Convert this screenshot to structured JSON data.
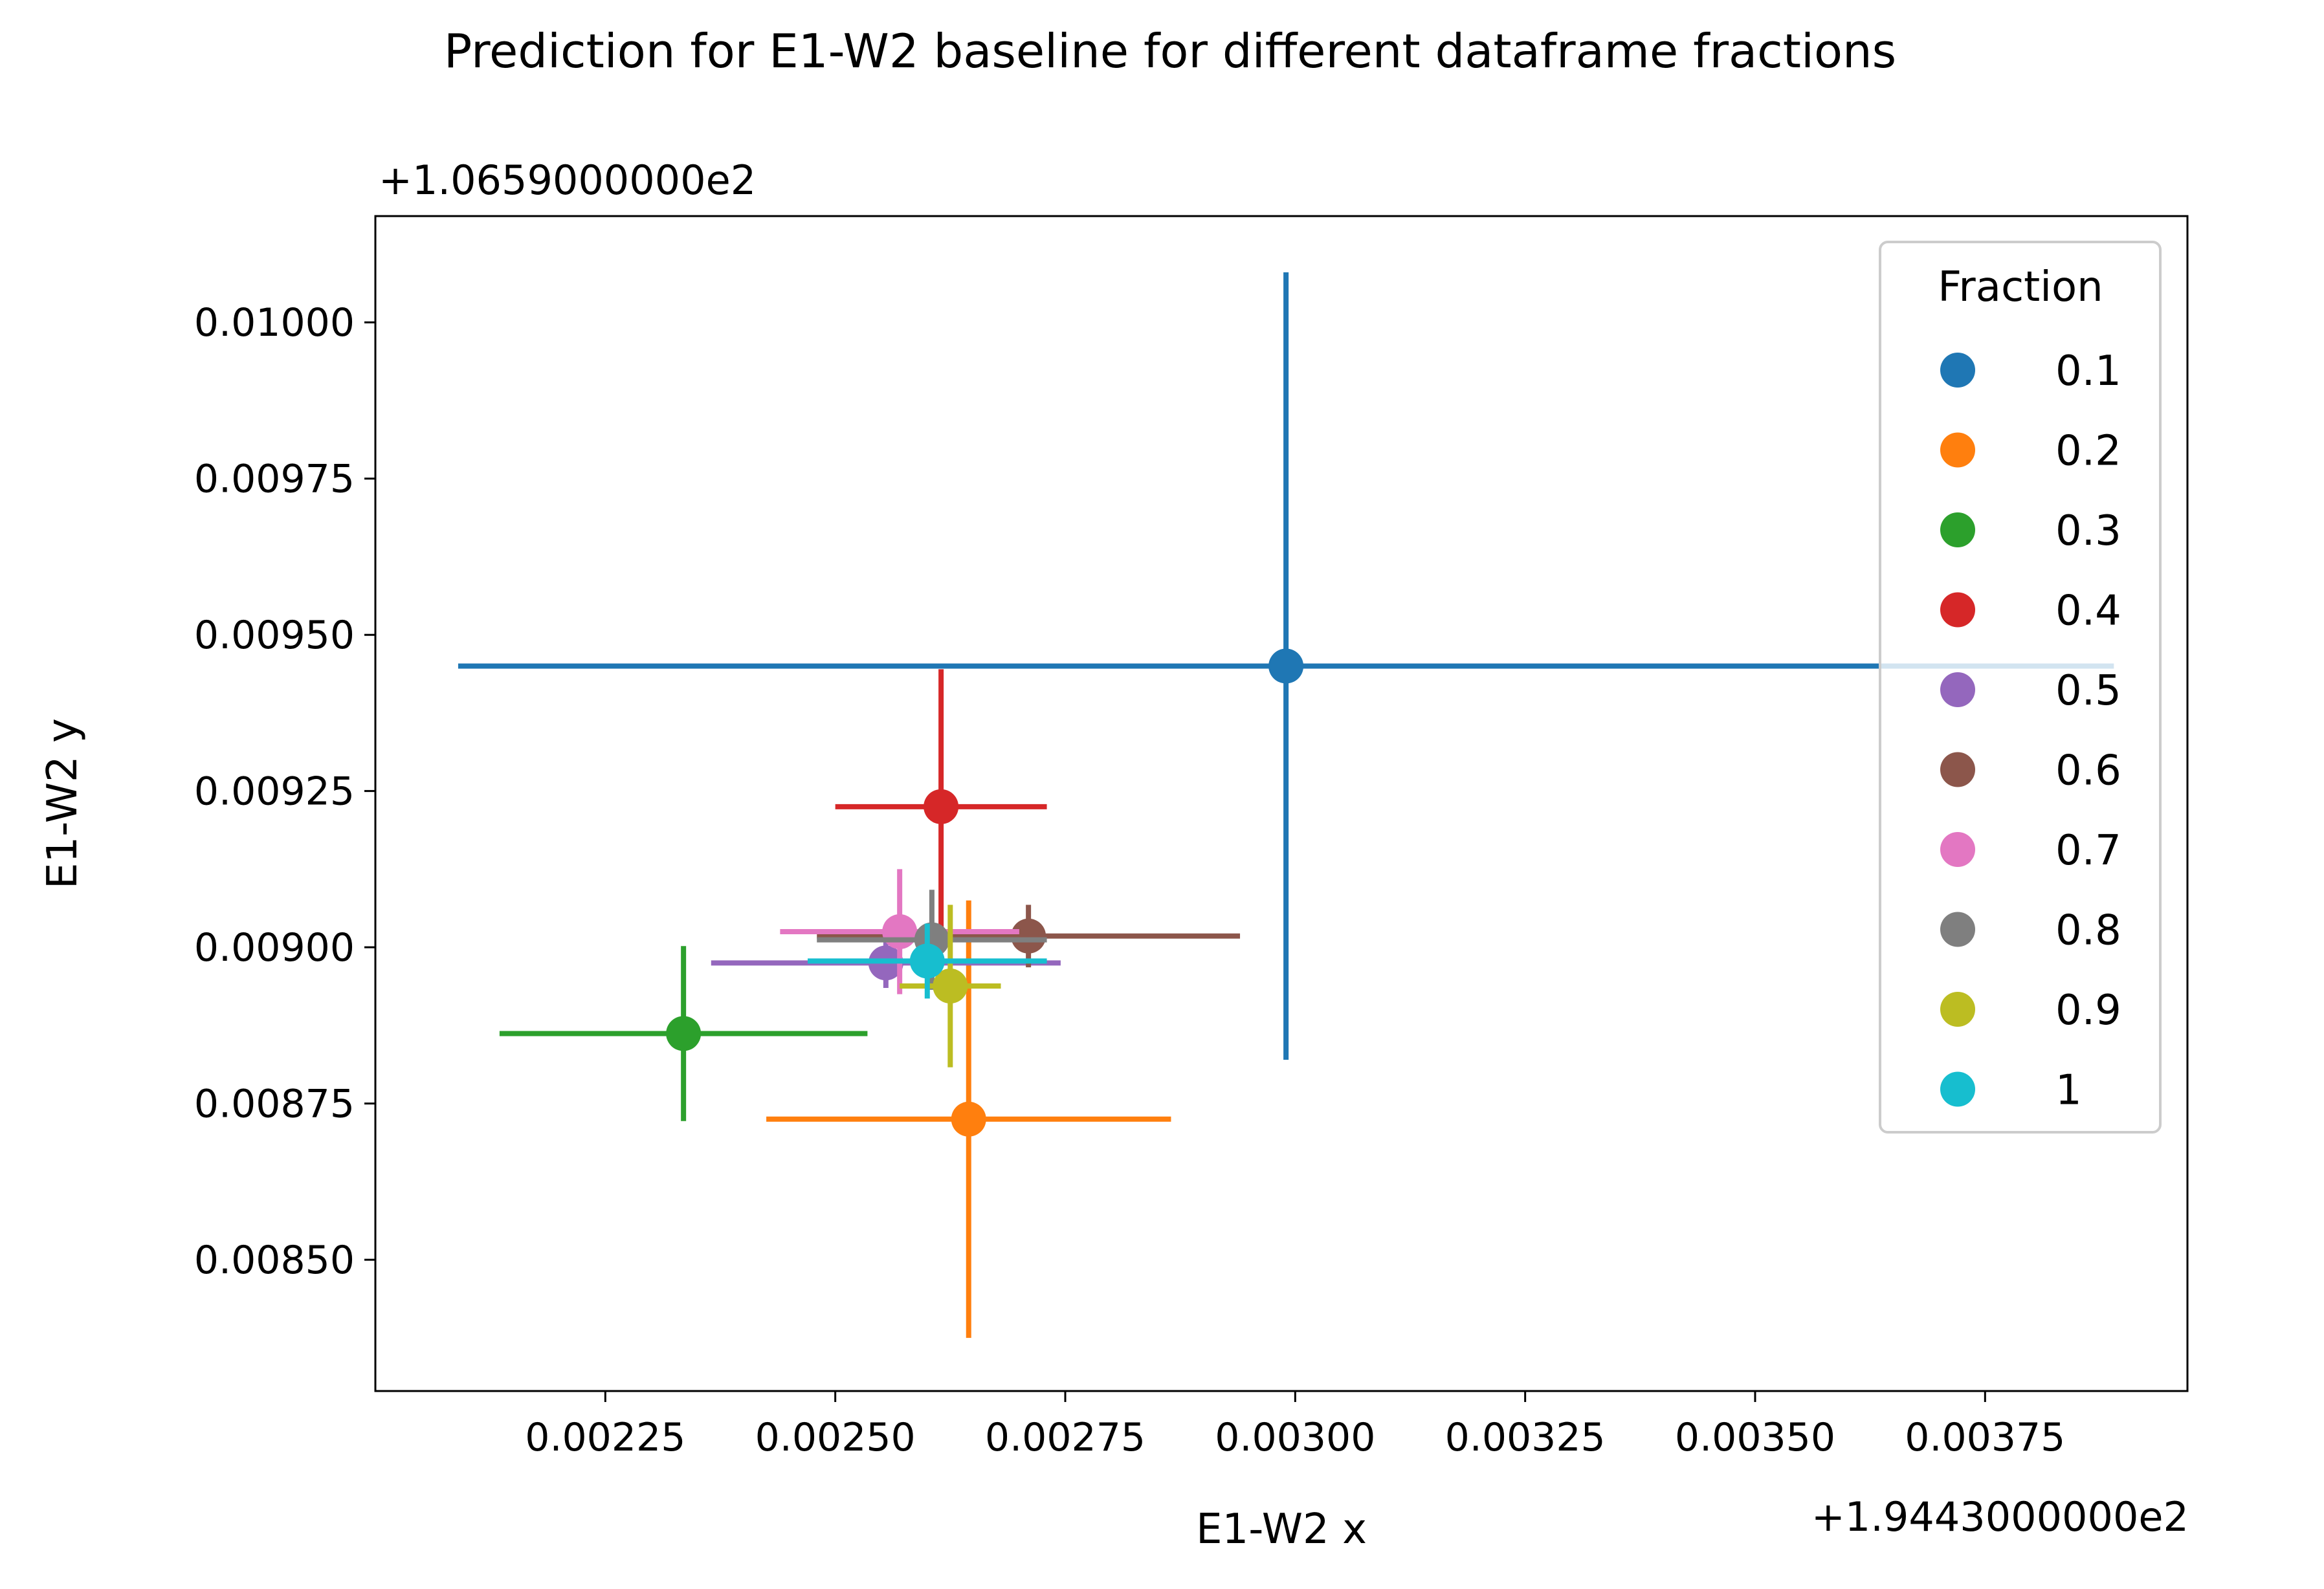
{
  "chart_data": {
    "type": "scatter",
    "title": "Prediction for E1-W2 baseline for different dataframe fractions",
    "xlabel": "E1-W2 x",
    "ylabel": "E1-W2 y",
    "x_offset_label": "+1.9443000000e2",
    "y_offset_label": "+1.0659000000e2",
    "x_offset": 194.43,
    "y_offset": 106.59,
    "xlim": [
      0.002,
      0.00397
    ],
    "ylim": [
      0.00829,
      0.01017
    ],
    "x_ticks": [
      0.00225,
      0.0025,
      0.00275,
      0.003,
      0.00325,
      0.0035,
      0.00375
    ],
    "x_tick_labels": [
      "0.00225",
      "0.00250",
      "0.00275",
      "0.00300",
      "0.00325",
      "0.00350",
      "0.00375"
    ],
    "y_ticks": [
      0.0085,
      0.00875,
      0.009,
      0.00925,
      0.0095,
      0.00975,
      0.01
    ],
    "y_tick_labels": [
      "0.00850",
      "0.00875",
      "0.00900",
      "0.00925",
      "0.00950",
      "0.00975",
      "0.01000"
    ],
    "grid": false,
    "legend": {
      "title": "Fraction",
      "position": "top-right"
    },
    "series": [
      {
        "name": "0.1",
        "color": "#1f77b4",
        "x": 0.00299,
        "y": 0.00945,
        "xerr": 0.0009,
        "yerr": 0.00063
      },
      {
        "name": "0.2",
        "color": "#ff7f0e",
        "x": 0.002645,
        "y": 0.008725,
        "xerr": 0.00022,
        "yerr": 0.00035
      },
      {
        "name": "0.3",
        "color": "#2ca02c",
        "x": 0.002335,
        "y": 0.008862,
        "xerr": 0.0002,
        "yerr": 0.00014
      },
      {
        "name": "0.4",
        "color": "#d62728",
        "x": 0.002615,
        "y": 0.009225,
        "xerr": 0.000115,
        "yerr": 0.00022
      },
      {
        "name": "0.5",
        "color": "#9467bd",
        "x": 0.002555,
        "y": 0.008975,
        "xerr": 0.00019,
        "yerr": 4e-05
      },
      {
        "name": "0.6",
        "color": "#8c564b",
        "x": 0.00271,
        "y": 0.009018,
        "xerr": 0.00023,
        "yerr": 5e-05
      },
      {
        "name": "0.7",
        "color": "#e377c2",
        "x": 0.00257,
        "y": 0.009025,
        "xerr": 0.00013,
        "yerr": 0.0001
      },
      {
        "name": "0.8",
        "color": "#7f7f7f",
        "x": 0.002605,
        "y": 0.009012,
        "xerr": 0.000125,
        "yerr": 8e-05
      },
      {
        "name": "0.9",
        "color": "#bcbd22",
        "x": 0.002625,
        "y": 0.008938,
        "xerr": 5.5e-05,
        "yerr": 0.00013
      },
      {
        "name": "1",
        "color": "#17becf",
        "x": 0.0026,
        "y": 0.008978,
        "xerr": 0.00013,
        "yerr": 6e-05
      }
    ]
  }
}
